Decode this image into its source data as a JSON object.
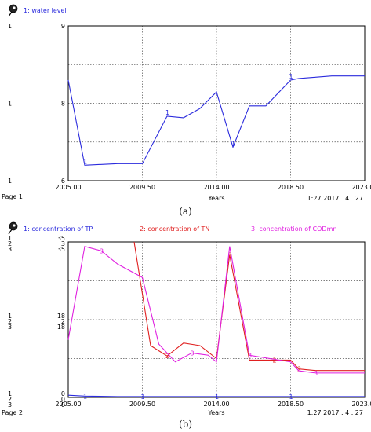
{
  "panel_a": {
    "legend": "1: water level",
    "page_label": "Page 1",
    "timestamp": "1:27   2017 . 4 . 27",
    "caption": "(a)",
    "axis_prefix": [
      "1:",
      "1:",
      "1:"
    ],
    "color": "#2b2bdd"
  },
  "panel_b": {
    "legends": [
      "1: concentration of TP",
      "2: concentration of TN",
      "3: concentration of CODmn"
    ],
    "page_label": "Page 2",
    "timestamp": "1:27   2017 . 4 . 27",
    "caption": "(b)",
    "y_prefixes": [
      "1:",
      "2:",
      "3:"
    ],
    "colors": [
      "#2b2bdd",
      "#e02020",
      "#e020e0"
    ]
  },
  "chart_data": [
    {
      "type": "line",
      "title": "",
      "xlabel": "Years",
      "ylabel": "",
      "x_ticks": [
        "2005.00",
        "2009.50",
        "2014.00",
        "2018.50",
        "2023.00"
      ],
      "xlim": [
        2005,
        2023
      ],
      "y_ticks": [
        "6",
        "8",
        "9"
      ],
      "ylim": [
        6,
        9
      ],
      "grid": true,
      "series": [
        {
          "name": "water level",
          "color": "#2b2bdd",
          "marker": "1",
          "x": [
            2005,
            2006,
            2008,
            2009.5,
            2011,
            2012,
            2013,
            2014,
            2015,
            2016,
            2017,
            2018.5,
            2019,
            2021,
            2023
          ],
          "y": [
            7.95,
            6.3,
            6.33,
            6.33,
            7.25,
            7.22,
            7.4,
            7.72,
            6.65,
            7.45,
            7.45,
            7.95,
            7.98,
            8.03,
            8.03
          ]
        }
      ]
    },
    {
      "type": "line",
      "title": "",
      "xlabel": "Years",
      "ylabel": "",
      "x_ticks": [
        "2005.00",
        "2009.50",
        "2014.00",
        "2018.50",
        "2023.00"
      ],
      "xlim": [
        2005,
        2023
      ],
      "y_ticks": [
        {
          "TP": "0",
          "TN": "0",
          "CODmn": "0"
        },
        {
          "TP": "18",
          "TN": "2",
          "CODmn": "18"
        },
        {
          "TP": "35",
          "TN": "3",
          "CODmn": "35"
        }
      ],
      "ylim_TP": [
        0,
        35
      ],
      "ylim_TN": [
        0,
        3
      ],
      "ylim_CODmn": [
        0,
        35
      ],
      "grid": true,
      "series": [
        {
          "name": "concentration of TP",
          "color": "#2b2bdd",
          "marker": "1",
          "x": [
            2005,
            2006,
            2008,
            2009.5,
            2011,
            2014,
            2016,
            2018.5,
            2021,
            2023
          ],
          "y": [
            0.5,
            0.3,
            0.2,
            0.2,
            0.2,
            0.2,
            0.2,
            0.2,
            0.2,
            0.2
          ]
        },
        {
          "name": "concentration of TN",
          "color": "#e02020",
          "marker": "2",
          "x": [
            2009,
            2010,
            2011,
            2012,
            2013,
            2014,
            2014.8,
            2016,
            2017.5,
            2018.5,
            2019,
            2020,
            2021,
            2023
          ],
          "y": [
            3.0,
            1.0,
            0.8,
            1.05,
            1.0,
            0.75,
            2.75,
            0.72,
            0.72,
            0.72,
            0.55,
            0.52,
            0.52,
            0.52
          ]
        },
        {
          "name": "concentration of CODmn",
          "color": "#e020e0",
          "marker": "3",
          "x": [
            2005,
            2006,
            2007,
            2008,
            2009.5,
            2010.5,
            2011.5,
            2012.5,
            2013.5,
            2014,
            2014.8,
            2016,
            2018.5,
            2019,
            2020,
            2021,
            2023
          ],
          "y": [
            13,
            34,
            33,
            30,
            27,
            12,
            8,
            10,
            9.5,
            8,
            34,
            9.5,
            8,
            6,
            5.5,
            5.5,
            5.5
          ]
        }
      ]
    }
  ]
}
